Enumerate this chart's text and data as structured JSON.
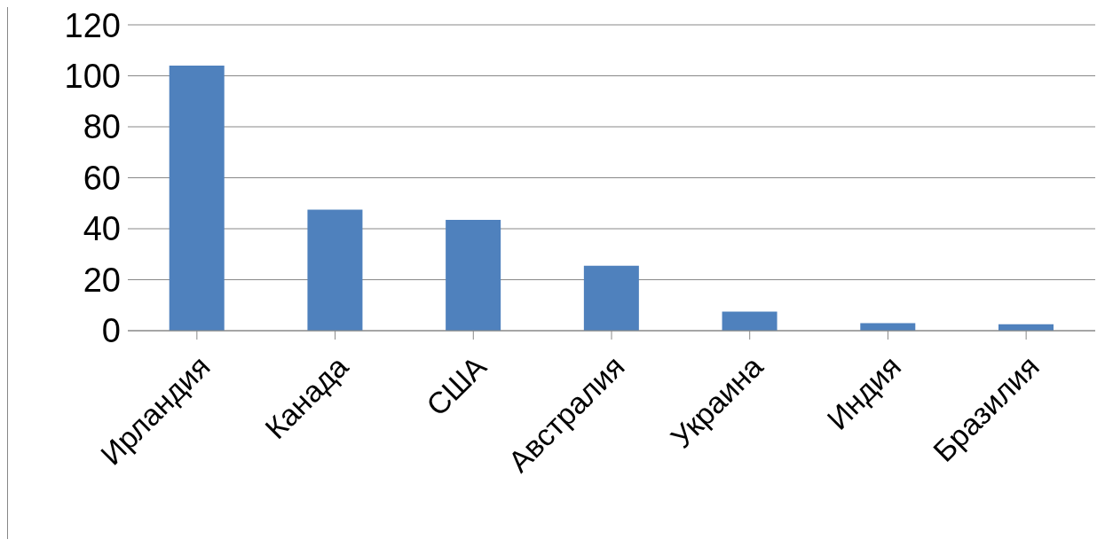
{
  "chart_data": {
    "type": "bar",
    "categories": [
      "Ирландия",
      "Канада",
      "США",
      "Австралия",
      "Украина",
      "Индия",
      "Бразилия"
    ],
    "values": [
      104,
      47.5,
      43.5,
      25.5,
      7.5,
      3,
      2.5
    ],
    "color": "#4f81bd",
    "ylim": [
      0,
      120
    ],
    "yticks": [
      0,
      20,
      40,
      60,
      80,
      100,
      120
    ],
    "grid": "y"
  }
}
